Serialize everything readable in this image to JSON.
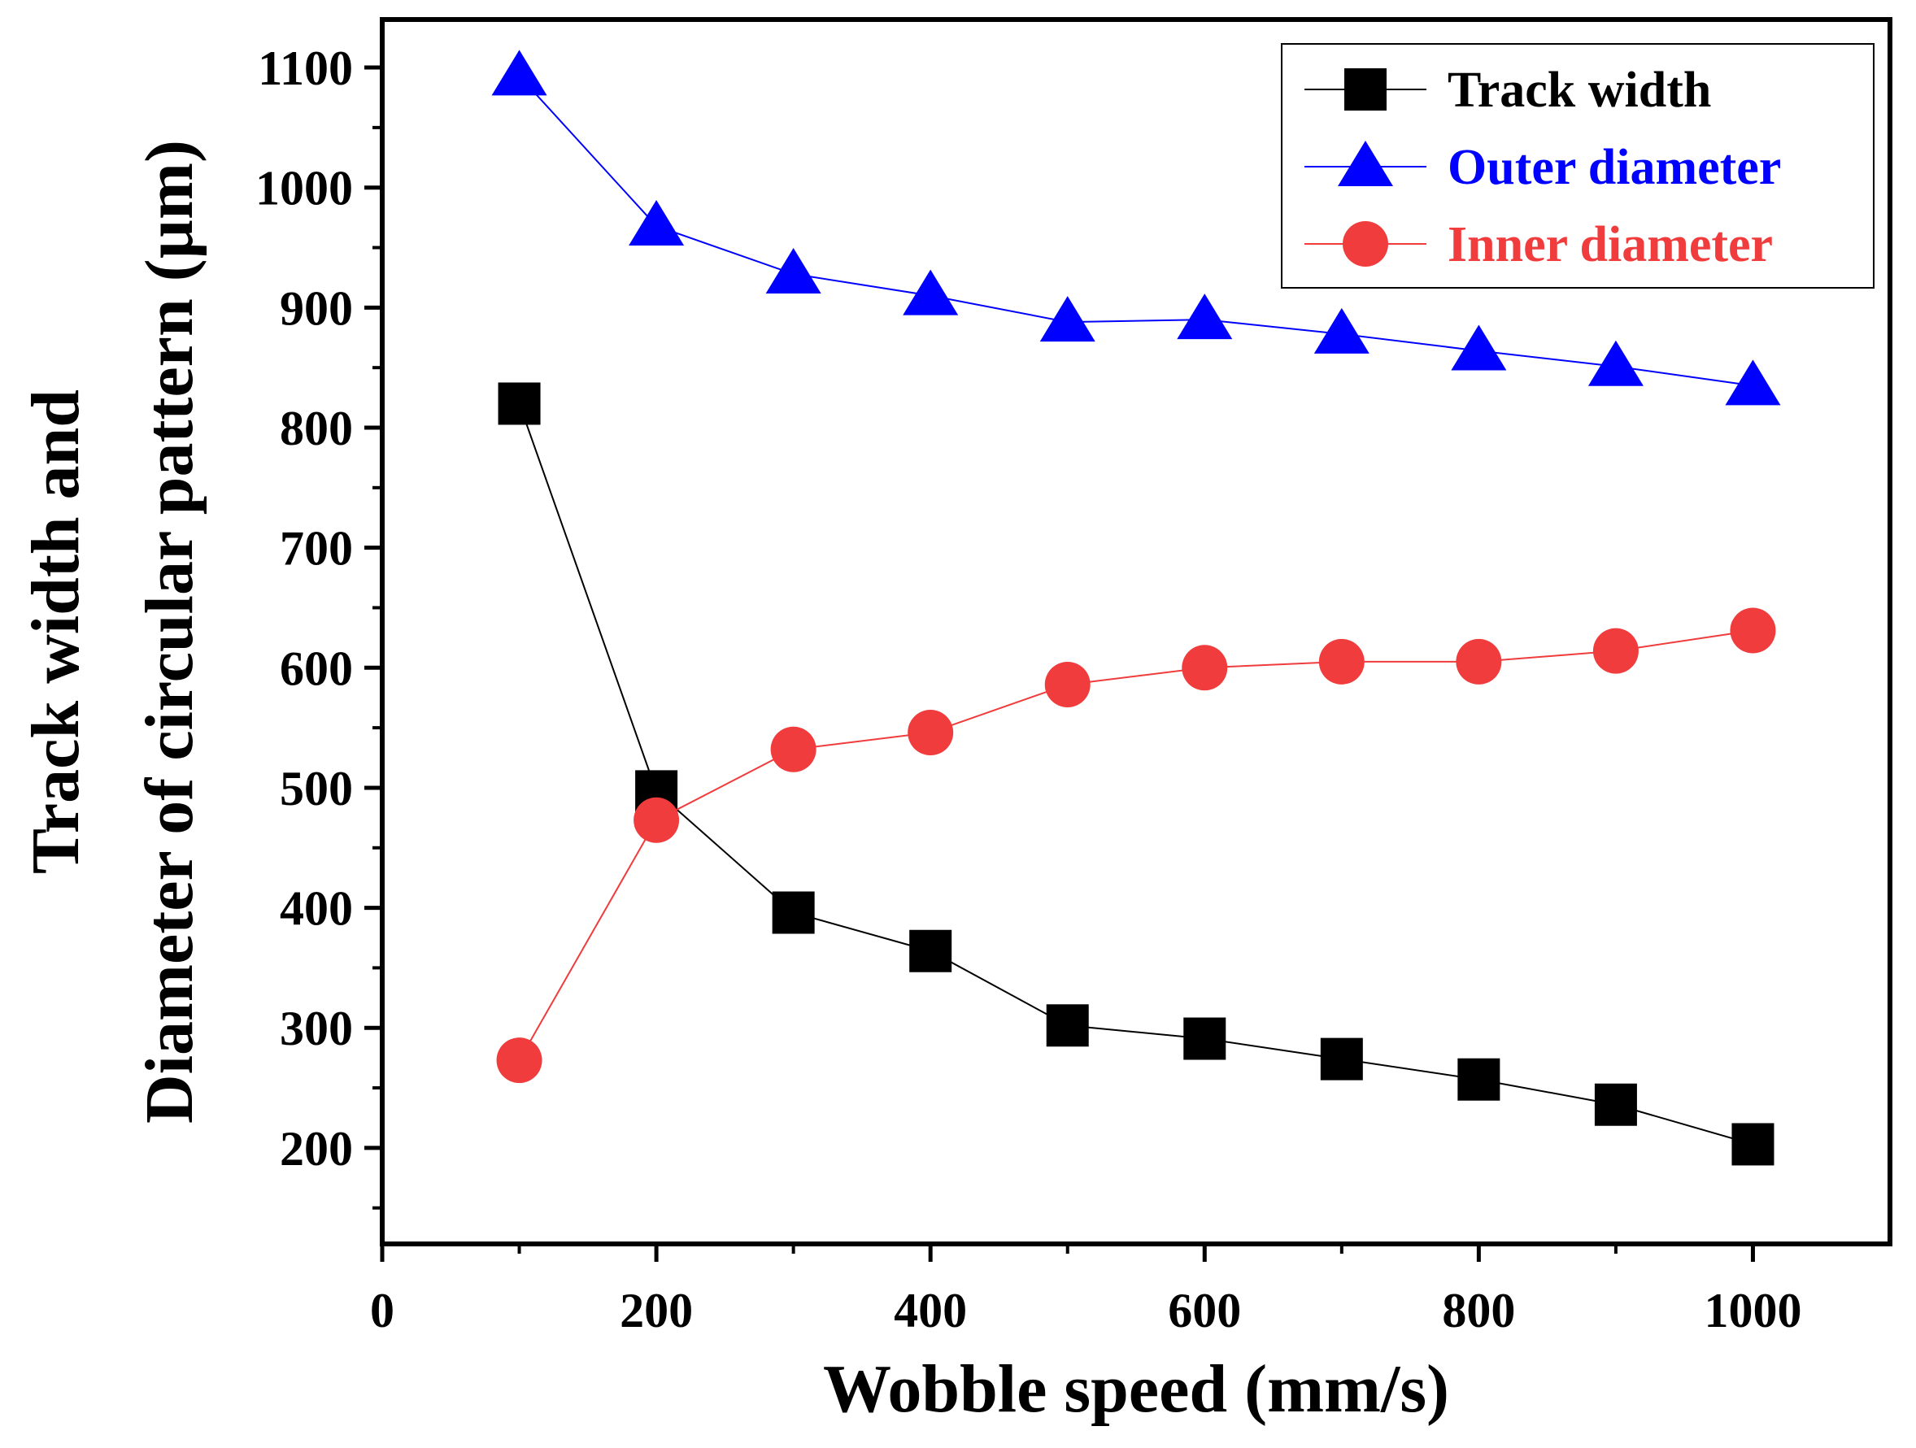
{
  "chart_data": {
    "type": "line",
    "title": "",
    "xlabel": "Wobble speed (mm/s)",
    "ylabel_lines": [
      "Track width and",
      "Diameter of circular pattern (µm)"
    ],
    "xlim": [
      0,
      1100
    ],
    "ylim": [
      120,
      1140
    ],
    "x_ticks": [
      0,
      200,
      400,
      600,
      800,
      1000
    ],
    "y_ticks": [
      200,
      300,
      400,
      500,
      600,
      700,
      800,
      900,
      1000,
      1100
    ],
    "legend_position": "top-right",
    "x": [
      100,
      200,
      300,
      400,
      500,
      600,
      700,
      800,
      900,
      1000
    ],
    "series": [
      {
        "name": "Track width",
        "marker": "square",
        "color": "#000000",
        "values": [
          820,
          497,
          396,
          364,
          302,
          291,
          274,
          257,
          236,
          203
        ]
      },
      {
        "name": "Outer diameter",
        "marker": "triangle",
        "color": "#0000ff",
        "values": [
          1093,
          968,
          928,
          910,
          888,
          890,
          878,
          864,
          851,
          835
        ]
      },
      {
        "name": "Inner diameter",
        "marker": "circle",
        "color": "#f03c3c",
        "values": [
          273,
          473,
          532,
          546,
          586,
          600,
          605,
          605,
          614,
          631
        ]
      }
    ]
  }
}
